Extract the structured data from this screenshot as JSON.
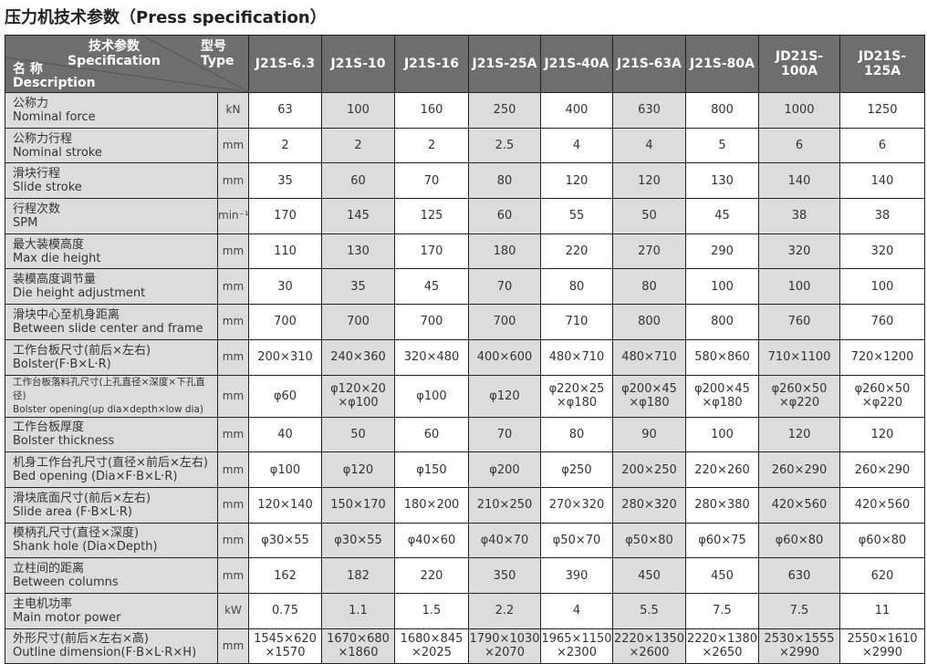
{
  "title": "压力机技术参数（Press specification）",
  "header": {
    "spec_zh": "技术参数",
    "spec_en": "Specification",
    "type_zh": "型号",
    "type_en": "Type",
    "desc_zh": "名 称",
    "desc_en": "Description",
    "models": [
      "J21S-6.3",
      "J21S-10",
      "J21S-16",
      "J21S-25A",
      "J21S-40A",
      "J21S-63A",
      "J21S-80A",
      "JD21S-100A",
      "JD21S-125A"
    ]
  },
  "rows": [
    {
      "zh": "公称力",
      "en": "Nominal force",
      "unit": "kN",
      "values": [
        "63",
        "100",
        "160",
        "250",
        "400",
        "630",
        "800",
        "1000",
        "1250"
      ]
    },
    {
      "zh": "公称力行程",
      "en": "Nominal stroke",
      "unit": "mm",
      "values": [
        "2",
        "2",
        "2",
        "2.5",
        "4",
        "4",
        "5",
        "6",
        "6"
      ]
    },
    {
      "zh": "滑块行程",
      "en": "Slide stroke",
      "unit": "mm",
      "values": [
        "35",
        "60",
        "70",
        "80",
        "120",
        "120",
        "130",
        "140",
        "140"
      ]
    },
    {
      "zh": "行程次数",
      "en": "SPM",
      "unit": "min⁻¹",
      "values": [
        "170",
        "145",
        "125",
        "60",
        "55",
        "50",
        "45",
        "38",
        "38"
      ]
    },
    {
      "zh": "最大装模高度",
      "en": "Max die height",
      "unit": "mm",
      "values": [
        "110",
        "130",
        "170",
        "180",
        "220",
        "270",
        "290",
        "320",
        "320"
      ]
    },
    {
      "zh": "装模高度调节量",
      "en": "Die height adjustment",
      "unit": "mm",
      "values": [
        "30",
        "35",
        "45",
        "70",
        "80",
        "80",
        "100",
        "100",
        "100"
      ]
    },
    {
      "zh": "滑块中心至机身距离",
      "en": "Between slide center and frame",
      "unit": "mm",
      "values": [
        "700",
        "700",
        "700",
        "700",
        "710",
        "800",
        "800",
        "760",
        "760"
      ]
    },
    {
      "zh": "工作台板尺寸(前后×左右)",
      "en": "Bolster(F·B×L·R)",
      "unit": "mm",
      "values": [
        "200×310",
        "240×360",
        "320×480",
        "400×600",
        "480×710",
        "480×710",
        "580×860",
        "710×1100",
        "720×1200"
      ]
    },
    {
      "zh": "工作台板落料孔尺寸(上孔直径×深度×下孔直径)",
      "en": "Bolster opening(up dia×depth×low dia)",
      "unit": "mm",
      "small": true,
      "values": [
        "φ60",
        "φ120×20\n×φ100",
        "φ100",
        "φ120",
        "φ220×25\n×φ180",
        "φ200×45\n×φ180",
        "φ200×45\n×φ180",
        "φ260×50\n×φ220",
        "φ260×50\n×φ220"
      ]
    },
    {
      "zh": "工作台板厚度",
      "en": "Bolster thickness",
      "unit": "mm",
      "values": [
        "40",
        "50",
        "60",
        "70",
        "80",
        "90",
        "100",
        "120",
        "120"
      ]
    },
    {
      "zh": "机身工作台孔尺寸(直径×前后×左右)",
      "en": "Bed opening (Dia×F·B×L·R)",
      "unit": "mm",
      "values": [
        "φ100",
        "φ120",
        "φ150",
        "φ200",
        "φ250",
        "200×250",
        "220×260",
        "260×290",
        "260×290"
      ]
    },
    {
      "zh": "滑块底面尺寸(前后×左右)",
      "en": "Slide area (F·B×L·R)",
      "unit": "mm",
      "values": [
        "120×140",
        "150×170",
        "180×200",
        "210×250",
        "270×320",
        "280×320",
        "280×380",
        "420×560",
        "420×560"
      ]
    },
    {
      "zh": "模柄孔尺寸(直径×深度)",
      "en": "Shank hole (Dia×Depth)",
      "unit": "mm",
      "values": [
        "φ30×55",
        "φ30×55",
        "φ40×60",
        "φ40×70",
        "φ50×70",
        "φ50×80",
        "φ60×75",
        "φ60×80",
        "φ60×80"
      ]
    },
    {
      "zh": "立柱间的距离",
      "en": "Between columns",
      "unit": "mm",
      "values": [
        "162",
        "182",
        "220",
        "350",
        "390",
        "450",
        "450",
        "630",
        "620"
      ]
    },
    {
      "zh": "主电机功率",
      "en": "Main motor power",
      "unit": "kW",
      "values": [
        "0.75",
        "1.1",
        "1.5",
        "2.2",
        "4",
        "5.5",
        "7.5",
        "7.5",
        "11"
      ]
    },
    {
      "zh": "外形尺寸(前后×左右×高)",
      "en": "Outline dimension(F·B×L·R×H)",
      "unit": "mm",
      "values": [
        "1545×620\n×1570",
        "1670×680\n×1860",
        "1680×845\n×2025",
        "1790×1030\n×2070",
        "1965×1150\n×2300",
        "2220×1350\n×2600",
        "2220×1380\n×2650",
        "2530×1555\n×2990",
        "2550×1610\n×2990"
      ]
    }
  ]
}
